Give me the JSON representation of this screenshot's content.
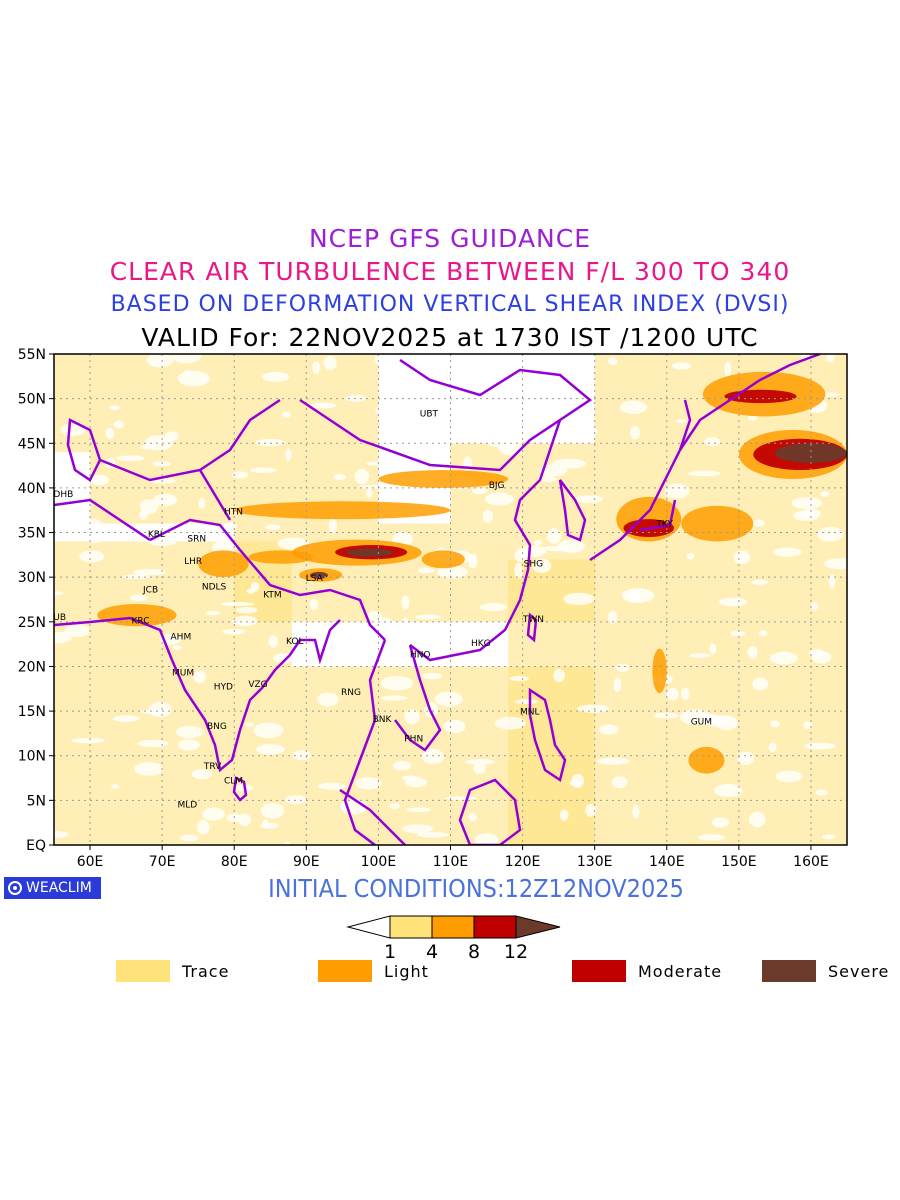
{
  "titles": {
    "line1": "NCEP GFS GUIDANCE",
    "line2": "CLEAR AIR TURBULENCE BETWEEN F/L 300 TO 340",
    "line3": "BASED ON DEFORMATION VERTICAL SHEAR INDEX (DVSI)",
    "line4": "VALID For: 22NOV2025 at 1730 IST /1200 UTC"
  },
  "initial_conditions": "INITIAL CONDITIONS:12Z12NOV2025",
  "logo_text": "WEACLIM",
  "map": {
    "lon_range": [
      55,
      165
    ],
    "lat_range": [
      0,
      55
    ],
    "lon_ticks": [
      "60E",
      "70E",
      "80E",
      "90E",
      "100E",
      "110E",
      "120E",
      "130E",
      "140E",
      "150E",
      "160E"
    ],
    "lon_values": [
      60,
      70,
      80,
      90,
      100,
      110,
      120,
      130,
      140,
      150,
      160
    ],
    "lat_ticks": [
      "EQ",
      "5N",
      "10N",
      "15N",
      "20N",
      "25N",
      "30N",
      "35N",
      "40N",
      "45N",
      "50N",
      "55N"
    ],
    "lat_values": [
      0,
      5,
      10,
      15,
      20,
      25,
      30,
      35,
      40,
      45,
      50,
      55
    ],
    "stations": [
      {
        "code": "UBT",
        "lon": 107,
        "lat": 48
      },
      {
        "code": "BJG",
        "lon": 116.4,
        "lat": 40
      },
      {
        "code": "DHB",
        "lon": 56.3,
        "lat": 39
      },
      {
        "code": "HTN",
        "lon": 79.9,
        "lat": 37
      },
      {
        "code": "KBL",
        "lon": 69.2,
        "lat": 34.5
      },
      {
        "code": "SRN",
        "lon": 74.8,
        "lat": 34
      },
      {
        "code": "LHR",
        "lon": 74.3,
        "lat": 31.5
      },
      {
        "code": "NDLS",
        "lon": 77.2,
        "lat": 28.6
      },
      {
        "code": "JCB",
        "lon": 68.4,
        "lat": 28.3
      },
      {
        "code": "KTM",
        "lon": 85.3,
        "lat": 27.7
      },
      {
        "code": "LSA",
        "lon": 91.1,
        "lat": 29.6
      },
      {
        "code": "SHG",
        "lon": 121.5,
        "lat": 31.2
      },
      {
        "code": "TKY",
        "lon": 139.7,
        "lat": 35.7
      },
      {
        "code": "DUB",
        "lon": 55.3,
        "lat": 25.2
      },
      {
        "code": "KRC",
        "lon": 67,
        "lat": 24.8
      },
      {
        "code": "AHM",
        "lon": 72.6,
        "lat": 23
      },
      {
        "code": "KOL",
        "lon": 88.4,
        "lat": 22.5
      },
      {
        "code": "TWN",
        "lon": 121.5,
        "lat": 25
      },
      {
        "code": "HNO",
        "lon": 105.8,
        "lat": 21
      },
      {
        "code": "HKG",
        "lon": 114.2,
        "lat": 22.3
      },
      {
        "code": "MUM",
        "lon": 72.9,
        "lat": 19
      },
      {
        "code": "HYD",
        "lon": 78.5,
        "lat": 17.4
      },
      {
        "code": "VZG",
        "lon": 83.3,
        "lat": 17.7
      },
      {
        "code": "RNG",
        "lon": 96.2,
        "lat": 16.8
      },
      {
        "code": "BNK",
        "lon": 100.5,
        "lat": 13.8
      },
      {
        "code": "MNL",
        "lon": 121,
        "lat": 14.6
      },
      {
        "code": "GUM",
        "lon": 144.8,
        "lat": 13.5
      },
      {
        "code": "BNG",
        "lon": 77.6,
        "lat": 13
      },
      {
        "code": "PHN",
        "lon": 104.9,
        "lat": 11.6
      },
      {
        "code": "TRV",
        "lon": 77,
        "lat": 8.5
      },
      {
        "code": "CLM",
        "lon": 79.9,
        "lat": 6.9
      },
      {
        "code": "MLD",
        "lon": 73.5,
        "lat": 4.2
      }
    ],
    "turbulence_zones": [
      {
        "level": "light",
        "lon": [
          88,
          106
        ],
        "lat": [
          31.3,
          34.2
        ]
      },
      {
        "level": "moderate",
        "lon": [
          94,
          104
        ],
        "lat": [
          32,
          33.6
        ]
      },
      {
        "level": "severe",
        "lon": [
          95.5,
          102
        ],
        "lat": [
          32.3,
          33.2
        ]
      },
      {
        "level": "light",
        "lon": [
          106,
          112
        ],
        "lat": [
          31,
          33
        ]
      },
      {
        "level": "light",
        "lon": [
          82,
          91
        ],
        "lat": [
          31.5,
          33
        ]
      },
      {
        "level": "light",
        "lon": [
          89,
          95
        ],
        "lat": [
          29.5,
          31
        ]
      },
      {
        "level": "severe",
        "lon": [
          90.5,
          93
        ],
        "lat": [
          29.8,
          30.6
        ]
      },
      {
        "level": "light",
        "lon": [
          133,
          142
        ],
        "lat": [
          34,
          39
        ]
      },
      {
        "level": "moderate",
        "lon": [
          134,
          141
        ],
        "lat": [
          34.5,
          36.5
        ]
      },
      {
        "level": "light",
        "lon": [
          150,
          165
        ],
        "lat": [
          41,
          46.5
        ]
      },
      {
        "level": "moderate",
        "lon": [
          152,
          165
        ],
        "lat": [
          42,
          45.5
        ]
      },
      {
        "level": "severe",
        "lon": [
          155,
          165
        ],
        "lat": [
          42.8,
          45
        ]
      },
      {
        "level": "light",
        "lon": [
          142,
          152
        ],
        "lat": [
          34,
          38
        ]
      },
      {
        "level": "light",
        "lon": [
          145,
          162
        ],
        "lat": [
          48,
          53
        ]
      },
      {
        "level": "moderate",
        "lon": [
          148,
          158
        ],
        "lat": [
          49.5,
          51
        ]
      },
      {
        "level": "light",
        "lon": [
          80,
          110
        ],
        "lat": [
          36.5,
          38.5
        ]
      },
      {
        "level": "light",
        "lon": [
          100,
          118
        ],
        "lat": [
          40,
          42
        ]
      },
      {
        "level": "light",
        "lon": [
          61,
          72
        ],
        "lat": [
          24.5,
          27
        ]
      },
      {
        "level": "light",
        "lon": [
          75,
          82
        ],
        "lat": [
          30,
          33
        ]
      },
      {
        "level": "light",
        "lon": [
          138,
          140
        ],
        "lat": [
          17,
          22
        ]
      },
      {
        "level": "light",
        "lon": [
          143,
          148
        ],
        "lat": [
          8,
          11
        ]
      }
    ],
    "trace_fields": [
      {
        "lon": [
          55,
          88
        ],
        "lat": [
          20,
          34
        ]
      },
      {
        "lon": [
          55,
          130
        ],
        "lat": [
          0,
          10
        ]
      },
      {
        "lon": [
          55,
          85
        ],
        "lat": [
          10,
          20
        ]
      },
      {
        "lon": [
          85,
          130
        ],
        "lat": [
          10,
          20
        ]
      },
      {
        "lon": [
          118,
          165
        ],
        "lat": [
          0,
          32
        ]
      },
      {
        "lon": [
          80,
          130
        ],
        "lat": [
          25,
          36
        ]
      },
      {
        "lon": [
          130,
          165
        ],
        "lat": [
          32,
          55
        ]
      },
      {
        "lon": [
          55,
          100
        ],
        "lat": [
          44,
          55
        ]
      },
      {
        "lon": [
          60,
          100
        ],
        "lat": [
          36,
          44
        ]
      },
      {
        "lon": [
          110,
          130
        ],
        "lat": [
          36,
          45
        ]
      }
    ]
  },
  "colorbar": {
    "ticks": [
      "1",
      "4",
      "8",
      "12"
    ],
    "colors": [
      "#ffe27a",
      "#ff9d00",
      "#c00000",
      "#6b3a2a"
    ]
  },
  "legend": [
    {
      "label": "Trace",
      "color": "#ffe27a"
    },
    {
      "label": "Light",
      "color": "#ff9d00"
    },
    {
      "label": "Moderate",
      "color": "#c00000"
    },
    {
      "label": "Severe",
      "color": "#6b3a2a"
    }
  ]
}
